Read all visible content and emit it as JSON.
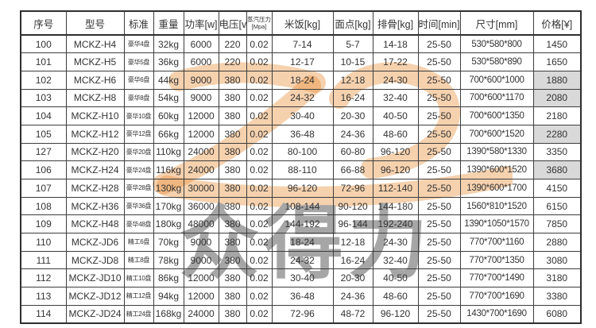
{
  "page": {
    "background": "#ffffff"
  },
  "watermark": {
    "logo_name": "brand-swoosh-logo",
    "logo_color": "#e8923f",
    "text": "众得力",
    "text_color": "#a6a6a6"
  },
  "table": {
    "highlight_color": "#d9d9d9",
    "columns": [
      {
        "key": "serial",
        "label": "序号"
      },
      {
        "key": "model",
        "label": "型号"
      },
      {
        "key": "standard",
        "label": "标准"
      },
      {
        "key": "weight",
        "label": "重量"
      },
      {
        "key": "power",
        "label": "功率[w]"
      },
      {
        "key": "voltage",
        "label": "电压[v]"
      },
      {
        "key": "pressure",
        "label": "蒸汽压力\n[Mpa]"
      },
      {
        "key": "rice",
        "label": "米饭[kg]"
      },
      {
        "key": "pastry",
        "label": "面点[kg]"
      },
      {
        "key": "ribs",
        "label": "排骨[kg]"
      },
      {
        "key": "time",
        "label": "时间[min]"
      },
      {
        "key": "size",
        "label": "尺寸[mm]"
      },
      {
        "key": "price",
        "label": "价格[¥]"
      }
    ],
    "rows": [
      {
        "serial": "100",
        "model": "MCKZ-H4",
        "standard": "豪华4盘",
        "weight": "32kg",
        "power": "6000",
        "voltage": "220",
        "pressure": "0.02",
        "rice": "7-14",
        "pastry": "5-7",
        "ribs": "14-18",
        "time": "25-50",
        "size": "530*580*800",
        "price": "1450",
        "price_highlight": false
      },
      {
        "serial": "101",
        "model": "MCKZ-H5",
        "standard": "豪华5盘",
        "weight": "36kg",
        "power": "6000",
        "voltage": "220",
        "pressure": "0.02",
        "rice": "12-17",
        "pastry": "10-15",
        "ribs": "17-22",
        "time": "25-50",
        "size": "530*580*890",
        "price": "1650",
        "price_highlight": false
      },
      {
        "serial": "102",
        "model": "MCKZ-H6",
        "standard": "豪华6盘",
        "weight": "44kg",
        "power": "9000",
        "voltage": "380",
        "pressure": "0.02",
        "rice": "18-24",
        "pastry": "12-18",
        "ribs": "24-30",
        "time": "25-50",
        "size": "700*600*1000",
        "price": "1880",
        "price_highlight": true
      },
      {
        "serial": "103",
        "model": "MCKZ-H8",
        "standard": "豪华8盘",
        "weight": "54kg",
        "power": "9000",
        "voltage": "380",
        "pressure": "0.02",
        "rice": "24-32",
        "pastry": "16-24",
        "ribs": "32-40",
        "time": "25-50",
        "size": "700*600*1170",
        "price": "2080",
        "price_highlight": true
      },
      {
        "serial": "104",
        "model": "MCKZ-H10",
        "standard": "豪华10盘",
        "weight": "60kg",
        "power": "12000",
        "voltage": "380",
        "pressure": "0.02",
        "rice": "30-40",
        "pastry": "20-30",
        "ribs": "40-50",
        "time": "25-50",
        "size": "700*600*1350",
        "price": "2180",
        "price_highlight": false
      },
      {
        "serial": "105",
        "model": "MCKZ-H12",
        "standard": "豪华12盘",
        "weight": "66kg",
        "power": "12000",
        "voltage": "380",
        "pressure": "0.02",
        "rice": "36-48",
        "pastry": "24-36",
        "ribs": "48-60",
        "time": "25-50",
        "size": "700*600*1520",
        "price": "2280",
        "price_highlight": true
      },
      {
        "serial": "127",
        "model": "MCKZ-H20",
        "standard": "豪华20盘",
        "weight": "110kg",
        "power": "24000",
        "voltage": "380",
        "pressure": "0.02",
        "rice": "80-100",
        "pastry": "60-80",
        "ribs": "96-120",
        "time": "25-50",
        "size": "1390*580*1330",
        "price": "3350",
        "price_highlight": false
      },
      {
        "serial": "106",
        "model": "MCKZ-H24",
        "standard": "豪华24盘",
        "weight": "116kg",
        "power": "24000",
        "voltage": "380",
        "pressure": "0.02",
        "rice": "88-110",
        "pastry": "66-88",
        "ribs": "96-120",
        "time": "25-50",
        "size": "1390*600*1520",
        "price": "3680",
        "price_highlight": true
      },
      {
        "serial": "107",
        "model": "MCKZ-H28",
        "standard": "豪华28盘",
        "weight": "130kg",
        "power": "30000",
        "voltage": "380",
        "pressure": "0.02",
        "rice": "96-120",
        "pastry": "72-96",
        "ribs": "112-140",
        "time": "25-50",
        "size": "1390*600*1700",
        "price": "4150",
        "price_highlight": false
      },
      {
        "serial": "108",
        "model": "MCKZ-H36",
        "standard": "豪华36盘",
        "weight": "170kg",
        "power": "36000",
        "voltage": "380",
        "pressure": "0.02",
        "rice": "108-144",
        "pastry": "90-120",
        "ribs": "144-180",
        "time": "25-50",
        "size": "1560*810*1520",
        "price": "6150",
        "price_highlight": false
      },
      {
        "serial": "109",
        "model": "MCKZ-H48",
        "standard": "豪华48盘",
        "weight": "180kg",
        "power": "48000",
        "voltage": "380",
        "pressure": "0.02",
        "rice": "144-192",
        "pastry": "96-144",
        "ribs": "192-240",
        "time": "25-50",
        "size": "1390*1050*1570",
        "price": "7850",
        "price_highlight": false
      },
      {
        "serial": "110",
        "model": "MCKZ-JD6",
        "standard": "精工6盘",
        "weight": "70kg",
        "power": "9000",
        "voltage": "380",
        "pressure": "0.02",
        "rice": "18-24",
        "pastry": "12-18",
        "ribs": "24-30",
        "time": "25-50",
        "size": "770*700*1160",
        "price": "2880",
        "price_highlight": false
      },
      {
        "serial": "111",
        "model": "MCKZ-JD8",
        "standard": "精工8盘",
        "weight": "78kg",
        "power": "9000",
        "voltage": "380",
        "pressure": "0.02",
        "rice": "24-32",
        "pastry": "16-24",
        "ribs": "32-40",
        "time": "25-50",
        "size": "770*700*1350",
        "price": "3080",
        "price_highlight": false
      },
      {
        "serial": "112",
        "model": "MCKZ-JD10",
        "standard": "精工10盘",
        "weight": "86kg",
        "power": "12000",
        "voltage": "380",
        "pressure": "0.02",
        "rice": "30-40",
        "pastry": "20-30",
        "ribs": "40-50",
        "time": "25-50",
        "size": "770*700*1490",
        "price": "3180",
        "price_highlight": false
      },
      {
        "serial": "113",
        "model": "MCKZ-JD12",
        "standard": "精工12盘",
        "weight": "94kg",
        "power": "12000",
        "voltage": "380",
        "pressure": "0.02",
        "rice": "36-48",
        "pastry": "24-36",
        "ribs": "48-60",
        "time": "25-50",
        "size": "770*700*1690",
        "price": "3380",
        "price_highlight": false
      },
      {
        "serial": "114",
        "model": "MCKZ-JD24",
        "standard": "精工24盘",
        "weight": "168kg",
        "power": "24000",
        "voltage": "380",
        "pressure": "0.02",
        "rice": "72-96",
        "pastry": "48-72",
        "ribs": "96-120",
        "time": "25-50",
        "size": "1430*700*1690",
        "price": "6080",
        "price_highlight": false
      }
    ]
  }
}
